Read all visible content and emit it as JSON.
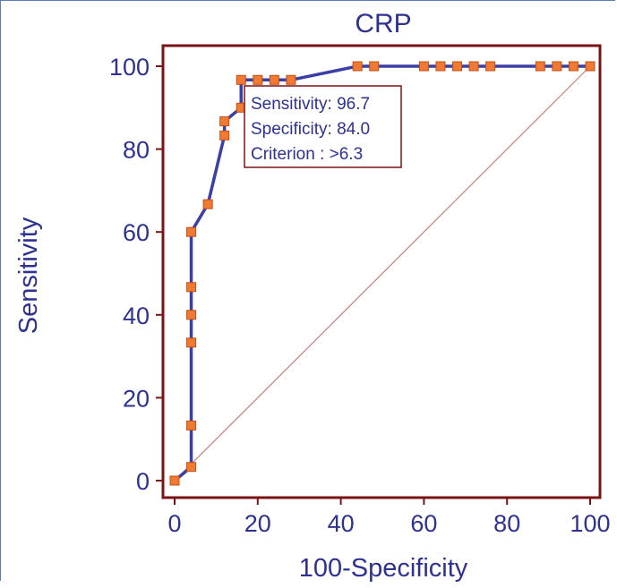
{
  "chart_data": {
    "type": "line",
    "title": "CRP",
    "xlabel": "100-Specificity",
    "ylabel": "Sensitivity",
    "xlim": [
      0,
      100
    ],
    "ylim": [
      0,
      100
    ],
    "xticks": [
      0,
      20,
      40,
      60,
      80,
      100
    ],
    "yticks": [
      0,
      20,
      40,
      60,
      80,
      100
    ],
    "grid": false,
    "series": [
      {
        "points": [
          [
            0,
            0
          ],
          [
            4,
            3.3
          ],
          [
            4,
            13.3
          ],
          [
            4,
            33.3
          ],
          [
            4,
            40
          ],
          [
            4,
            46.7
          ],
          [
            4,
            60
          ],
          [
            8,
            66.7
          ],
          [
            12,
            83.3
          ],
          [
            12,
            86.7
          ],
          [
            16,
            90
          ],
          [
            16,
            96.7
          ],
          [
            20,
            96.7
          ],
          [
            24,
            96.7
          ],
          [
            28,
            96.7
          ],
          [
            44,
            100
          ],
          [
            48,
            100
          ],
          [
            60,
            100
          ],
          [
            64,
            100
          ],
          [
            68,
            100
          ],
          [
            72,
            100
          ],
          [
            76,
            100
          ],
          [
            88,
            100
          ],
          [
            92,
            100
          ],
          [
            96,
            100
          ],
          [
            100,
            100
          ]
        ]
      }
    ],
    "reference_line": [
      [
        0,
        0
      ],
      [
        100,
        100
      ]
    ],
    "annotation": {
      "lines": [
        "Sensitivity: 96.7",
        "Specificity: 84.0",
        "Criterion : >6.3"
      ],
      "anchor": [
        16,
        96.7
      ]
    },
    "colors": {
      "curve": "#3b3fa6",
      "marker_fill": "#f07a32",
      "marker_stroke": "#c0501a",
      "plot_border": "#7a1414",
      "reference": "#c88080",
      "text": "#2e3192"
    }
  }
}
